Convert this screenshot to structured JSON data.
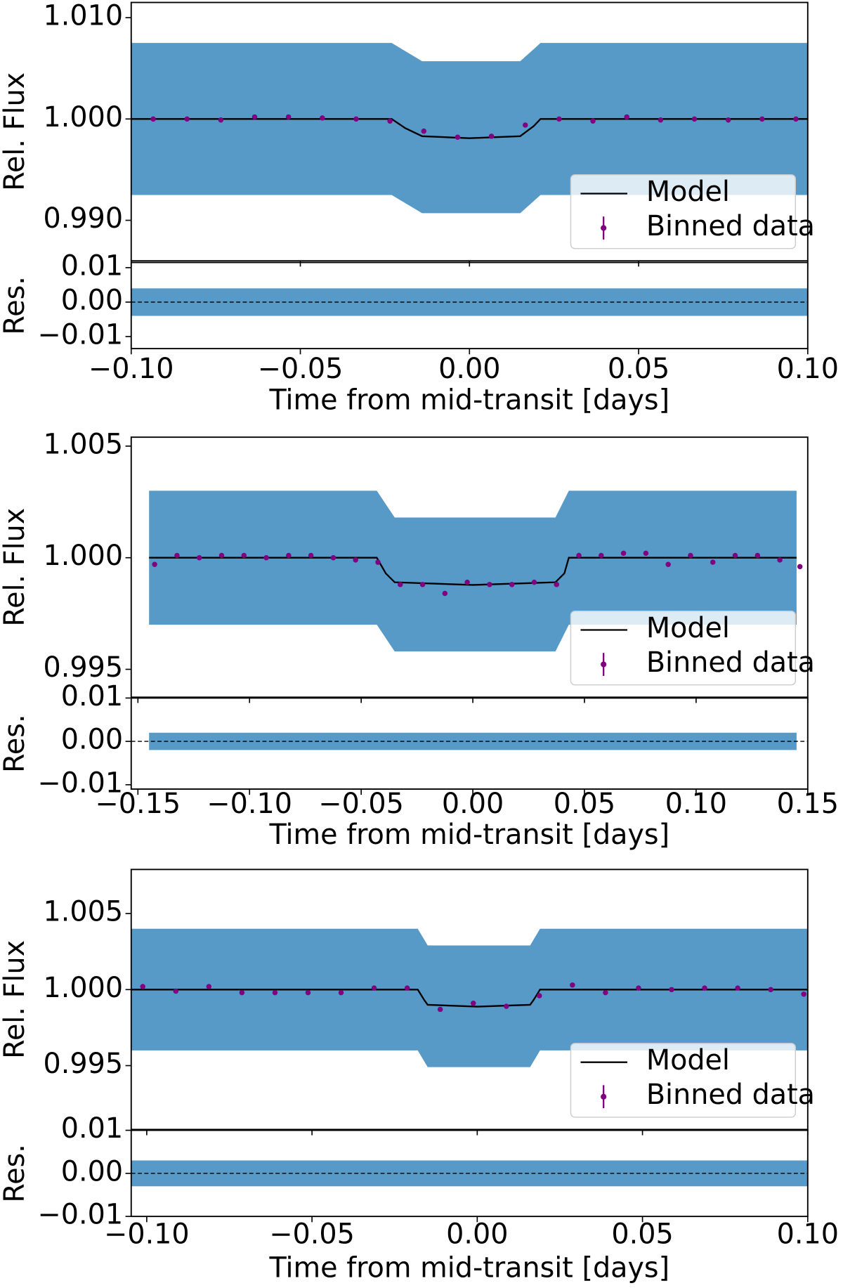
{
  "chart_data": [
    {
      "type": "line",
      "ylabel": "Rel. Flux",
      "xlabel": "Time from mid-transit [days]",
      "xlim": [
        -0.1,
        0.1
      ],
      "xticks": [
        {
          "value": -0.1,
          "label": "−0.10"
        },
        {
          "value": -0.05,
          "label": "−0.05"
        },
        {
          "value": 0,
          "label": "0.00"
        },
        {
          "value": 0.05,
          "label": "0.05"
        },
        {
          "value": 0.1,
          "label": "0.10"
        }
      ],
      "ylim": [
        0.986,
        1.0115
      ],
      "yticks": [
        {
          "value": 0.99,
          "label": "0.990"
        },
        {
          "value": 1,
          "label": "1.000"
        },
        {
          "value": 1.01,
          "label": "1.010"
        }
      ],
      "legend": "lower right",
      "scatter_envelope": {
        "color": "#1f77b4",
        "x": [
          -0.1,
          -0.023,
          -0.014,
          0.015,
          0.021,
          0.1
        ],
        "upper": [
          1.0075,
          1.0075,
          1.0057,
          1.0057,
          1.0075,
          1.0075
        ],
        "lower": [
          0.9925,
          0.9925,
          0.9907,
          0.9907,
          0.9925,
          0.9925
        ]
      },
      "series": [
        {
          "name": "Model",
          "kind": "line",
          "color": "#000000",
          "x": [
            -0.1,
            -0.023,
            -0.019,
            -0.014,
            0.0,
            0.015,
            0.019,
            0.021,
            0.1
          ],
          "values": [
            1.0,
            1.0,
            0.9991,
            0.9983,
            0.9981,
            0.9983,
            0.9993,
            1.0,
            1.0
          ]
        },
        {
          "name": "Binned data",
          "kind": "points",
          "color": "#800080",
          "x": [
            -0.0935,
            -0.0835,
            -0.0735,
            -0.0635,
            -0.0535,
            -0.0435,
            -0.0335,
            -0.0235,
            -0.0135,
            -0.0035,
            0.0065,
            0.0165,
            0.0265,
            0.0365,
            0.0465,
            0.0565,
            0.0665,
            0.0765,
            0.0865,
            0.0965
          ],
          "values": [
            1.0,
            1.0,
            0.9999,
            1.0002,
            1.0002,
            1.0001,
            1.0,
            0.9998,
            0.9988,
            0.9982,
            0.9983,
            0.9994,
            1.0,
            0.9998,
            1.0002,
            0.9999,
            1.0,
            0.9999,
            1.0,
            1.0
          ]
        }
      ],
      "residuals": {
        "ylabel": "Res.",
        "ylim": [
          -0.0135,
          0.0115
        ],
        "yticks": [
          {
            "value": -0.01,
            "label": "−0.01"
          },
          {
            "value": 0,
            "label": "0.00"
          },
          {
            "value": 0.01,
            "label": "0.01"
          }
        ],
        "hline": 0,
        "envelope": {
          "x": [
            -0.1,
            0.1
          ],
          "upper": [
            0.004,
            0.004
          ],
          "lower": [
            -0.004,
            -0.004
          ]
        }
      }
    },
    {
      "type": "line",
      "ylabel": "Rel. Flux",
      "xlabel": "Time from mid-transit [days]",
      "xlim": [
        -0.153,
        0.15
      ],
      "xticks": [
        {
          "value": -0.15,
          "label": "−0.15"
        },
        {
          "value": -0.1,
          "label": "−0.10"
        },
        {
          "value": -0.05,
          "label": "−0.05"
        },
        {
          "value": 0,
          "label": "0.00"
        },
        {
          "value": 0.05,
          "label": "0.05"
        },
        {
          "value": 0.1,
          "label": "0.10"
        },
        {
          "value": 0.15,
          "label": "0.15"
        }
      ],
      "ylim": [
        0.99375,
        1.0054
      ],
      "yticks": [
        {
          "value": 0.995,
          "label": "0.995"
        },
        {
          "value": 1,
          "label": "1.000"
        },
        {
          "value": 1.005,
          "label": "1.005"
        }
      ],
      "legend": "lower right",
      "scatter_envelope": {
        "color": "#1f77b4",
        "x": [
          -0.145,
          -0.043,
          -0.035,
          0.037,
          0.043,
          0.145
        ],
        "upper": [
          1.003,
          1.003,
          1.0018,
          1.0018,
          1.003,
          1.003
        ],
        "lower": [
          0.997,
          0.997,
          0.9958,
          0.9958,
          0.997,
          0.997
        ]
      },
      "series": [
        {
          "name": "Model",
          "kind": "line",
          "color": "#000000",
          "x": [
            -0.145,
            -0.043,
            -0.039,
            -0.035,
            0.0,
            0.037,
            0.041,
            0.043,
            0.145
          ],
          "values": [
            1.0,
            1.0,
            0.9993,
            0.9989,
            0.99878,
            0.9989,
            0.9993,
            1.0,
            1.0
          ]
        },
        {
          "name": "Binned data",
          "kind": "points",
          "color": "#800080",
          "x": [
            -0.1425,
            -0.1325,
            -0.1225,
            -0.1125,
            -0.1025,
            -0.0925,
            -0.0825,
            -0.0725,
            -0.0625,
            -0.0525,
            -0.0425,
            -0.0325,
            -0.0225,
            -0.0125,
            -0.0025,
            0.0075,
            0.0175,
            0.0275,
            0.0375,
            0.0475,
            0.0575,
            0.0675,
            0.0775,
            0.0875,
            0.0975,
            0.1075,
            0.1175,
            0.1275,
            0.1375,
            0.1465
          ],
          "values": [
            0.9997,
            1.0001,
            1.0,
            1.0001,
            1.0001,
            1.0,
            1.0001,
            1.0001,
            1.0,
            0.9999,
            0.9998,
            0.9988,
            0.9988,
            0.9984,
            0.9989,
            0.9988,
            0.9988,
            0.9989,
            0.9988,
            1.0001,
            1.0001,
            1.0002,
            1.0002,
            0.9997,
            1.0001,
            0.9998,
            1.0001,
            1.0001,
            0.9999,
            0.9996
          ]
        }
      ],
      "residuals": {
        "ylabel": "Res.",
        "ylim": [
          -0.011,
          0.01
        ],
        "yticks": [
          {
            "value": -0.01,
            "label": "−0.01"
          },
          {
            "value": 0,
            "label": "0.00"
          },
          {
            "value": 0.01,
            "label": "0.01"
          }
        ],
        "hline": 0,
        "envelope": {
          "x": [
            -0.145,
            0.145
          ],
          "upper": [
            0.002,
            0.002
          ],
          "lower": [
            -0.002,
            -0.002
          ]
        }
      }
    },
    {
      "type": "line",
      "ylabel": "Rel. Flux",
      "xlabel": "Time from mid-transit [days]",
      "xlim": [
        -0.1047,
        0.1
      ],
      "xticks": [
        {
          "value": -0.1,
          "label": "−0.10"
        },
        {
          "value": -0.05,
          "label": "−0.05"
        },
        {
          "value": 0,
          "label": "0.00"
        },
        {
          "value": 0.05,
          "label": "0.05"
        },
        {
          "value": 0.1,
          "label": "0.10"
        }
      ],
      "ylim": [
        0.9908,
        1.0079
      ],
      "yticks": [
        {
          "value": 0.995,
          "label": "0.995"
        },
        {
          "value": 1,
          "label": "1.000"
        },
        {
          "value": 1.005,
          "label": "1.005"
        }
      ],
      "legend": "lower right",
      "scatter_envelope": {
        "color": "#1f77b4",
        "x": [
          -0.1047,
          -0.018,
          -0.015,
          0.016,
          0.019,
          0.1
        ],
        "upper": [
          1.004,
          1.004,
          1.0029,
          1.0029,
          1.004,
          1.004
        ],
        "lower": [
          0.996,
          0.996,
          0.9949,
          0.9949,
          0.996,
          0.996
        ]
      },
      "series": [
        {
          "name": "Model",
          "kind": "line",
          "color": "#000000",
          "x": [
            -0.1047,
            -0.018,
            -0.016,
            -0.015,
            0.0,
            0.016,
            0.017,
            0.019,
            0.1
          ],
          "values": [
            1.0,
            1.0,
            0.9993,
            0.999,
            0.99888,
            0.999,
            0.9993,
            1.0,
            1.0
          ]
        },
        {
          "name": "Binned data",
          "kind": "points",
          "color": "#800080",
          "x": [
            -0.1012,
            -0.0912,
            -0.0812,
            -0.0712,
            -0.0612,
            -0.0512,
            -0.0412,
            -0.0312,
            -0.0212,
            -0.0112,
            -0.0012,
            0.0088,
            0.0188,
            0.0288,
            0.0388,
            0.0488,
            0.0588,
            0.0688,
            0.0788,
            0.0888,
            0.0988
          ],
          "values": [
            1.0002,
            0.9999,
            1.0002,
            0.9998,
            0.9998,
            0.9998,
            0.9998,
            1.0001,
            1.0001,
            0.9987,
            0.9991,
            0.9989,
            0.9996,
            1.0003,
            0.9998,
            1.0001,
            1.0,
            1.0001,
            1.0001,
            1.0,
            0.9997
          ]
        }
      ],
      "residuals": {
        "ylabel": "Res.",
        "ylim": [
          -0.01,
          0.01
        ],
        "yticks": [
          {
            "value": -0.01,
            "label": "−0.01"
          },
          {
            "value": 0,
            "label": "0.00"
          },
          {
            "value": 0.01,
            "label": "0.01"
          }
        ],
        "hline": 0,
        "envelope": {
          "x": [
            -0.1047,
            0.1
          ],
          "upper": [
            0.003,
            0.003
          ],
          "lower": [
            -0.003,
            -0.003
          ]
        }
      }
    }
  ]
}
